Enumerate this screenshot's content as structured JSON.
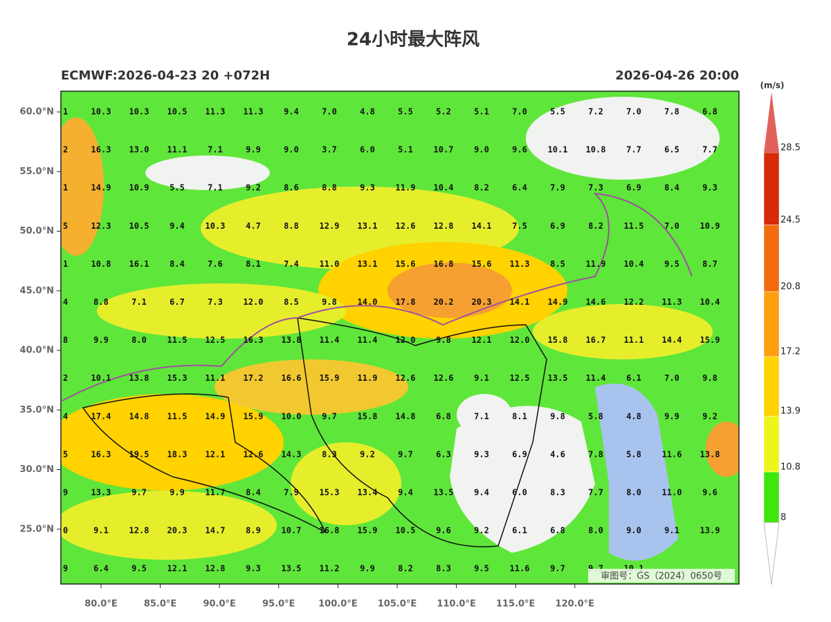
{
  "title": "24小时最大阵风",
  "left_label": "ECMWF:2026-04-23 20 +072H",
  "right_label": "2026-04-26 20:00",
  "unit": "(m/s)",
  "review_number": "审图号：GS（2024）0650号",
  "lat_ticks": [
    {
      "value": 60,
      "label": "60.0°N"
    },
    {
      "value": 55,
      "label": "55.0°N"
    },
    {
      "value": 50,
      "label": "50.0°N"
    },
    {
      "value": 45,
      "label": "45.0°N"
    },
    {
      "value": 40,
      "label": "40.0°N"
    },
    {
      "value": 35,
      "label": "35.0°N"
    },
    {
      "value": 30,
      "label": "30.0°N"
    },
    {
      "value": 25,
      "label": "25.0°N"
    }
  ],
  "lon_ticks": [
    {
      "value": 80,
      "label": "80.0°E"
    },
    {
      "value": 85,
      "label": "85.0°E"
    },
    {
      "value": 90,
      "label": "90.0°E"
    },
    {
      "value": 95,
      "label": "95.0°E"
    },
    {
      "value": 100,
      "label": "100.0°E"
    },
    {
      "value": 105,
      "label": "105.0°E"
    },
    {
      "value": 110,
      "label": "110.0°E"
    },
    {
      "value": 115,
      "label": "115.0°E"
    },
    {
      "value": 120,
      "label": "120.0°E"
    }
  ],
  "colorbar": {
    "levels": [
      8,
      10.8,
      13.9,
      17.2,
      20.8,
      24.5,
      28.5
    ],
    "colors": [
      "#3ee60d",
      "#eef51c",
      "#ffd200",
      "#ff9e10",
      "#f06c0c",
      "#d62a08"
    ],
    "over_color": "#e0625a"
  },
  "grid": {
    "rows": [
      [
        ".1",
        "10.3",
        "10.3",
        "10.5",
        "11.3",
        "11.3",
        "9.4",
        "7.0",
        "4.8",
        "5.5",
        "5.2",
        "5.1",
        "7.0",
        "5.5",
        "7.2",
        "7.0",
        "7.8",
        "6.8"
      ],
      [
        ".2",
        "16.3",
        "13.0",
        "11.1",
        "7.1",
        "9.9",
        "9.0",
        "3.7",
        "6.0",
        "5.1",
        "10.7",
        "9.0",
        "9.6",
        "10.1",
        "10.8",
        "7.7",
        "6.5",
        "7.7"
      ],
      [
        ".1",
        "14.9",
        "10.9",
        "5.5",
        "7.1",
        "9.2",
        "8.6",
        "8.8",
        "9.3",
        "11.9",
        "10.4",
        "8.2",
        "6.4",
        "7.9",
        "7.3",
        "6.9",
        "8.4",
        "9.3"
      ],
      [
        ".5",
        "12.3",
        "10.5",
        "9.4",
        "10.3",
        "4.7",
        "8.8",
        "12.9",
        "13.1",
        "12.6",
        "12.8",
        "14.1",
        "7.5",
        "6.9",
        "8.2",
        "11.5",
        "7.0",
        "10.9"
      ],
      [
        ".1",
        "10.8",
        "16.1",
        "8.4",
        "7.6",
        "8.1",
        "7.4",
        "11.0",
        "13.1",
        "15.6",
        "16.8",
        "15.6",
        "11.3",
        "8.5",
        "11.9",
        "10.4",
        "9.5",
        "8.7"
      ],
      [
        ".4",
        "8.8",
        "7.1",
        "6.7",
        "7.3",
        "12.0",
        "8.5",
        "9.8",
        "14.0",
        "17.8",
        "20.2",
        "20.3",
        "14.1",
        "14.9",
        "14.6",
        "12.2",
        "11.3",
        "10.4"
      ],
      [
        ".8",
        "9.9",
        "8.0",
        "11.5",
        "12.5",
        "16.3",
        "13.8",
        "11.4",
        "11.4",
        "12.0",
        "9.8",
        "12.1",
        "12.0",
        "15.8",
        "16.7",
        "11.1",
        "14.4",
        "15.9"
      ],
      [
        ".2",
        "10.1",
        "13.8",
        "15.3",
        "11.1",
        "17.2",
        "16.6",
        "15.9",
        "11.9",
        "12.6",
        "12.6",
        "9.1",
        "12.5",
        "13.5",
        "11.4",
        "6.1",
        "7.0",
        "9.8"
      ],
      [
        ".4",
        "17.4",
        "14.8",
        "11.5",
        "14.9",
        "15.9",
        "10.0",
        "9.7",
        "15.8",
        "14.8",
        "6.8",
        "7.1",
        "8.1",
        "9.8",
        "5.8",
        "4.8",
        "9.9",
        "9.2"
      ],
      [
        ".5",
        "16.3",
        "19.5",
        "18.3",
        "12.1",
        "12.6",
        "14.3",
        "8.3",
        "9.2",
        "9.7",
        "6.3",
        "9.3",
        "6.9",
        "4.6",
        "7.8",
        "5.8",
        "11.6",
        "13.8"
      ],
      [
        ".9",
        "13.3",
        "9.7",
        "9.9",
        "11.7",
        "8.4",
        "7.9",
        "15.3",
        "13.4",
        "9.4",
        "13.5",
        "9.4",
        "6.0",
        "8.3",
        "7.7",
        "8.0",
        "11.0",
        "9.6"
      ],
      [
        ".0",
        "9.1",
        "12.8",
        "20.3",
        "14.7",
        "8.9",
        "10.7",
        "16.8",
        "15.9",
        "10.5",
        "9.6",
        "9.2",
        "6.1",
        "6.8",
        "8.0",
        "9.0",
        "9.1",
        "13.9"
      ],
      [
        ".9",
        "6.4",
        "9.5",
        "12.1",
        "12.8",
        "9.3",
        "13.5",
        "11.2",
        "9.9",
        "8.2",
        "8.3",
        "9.5",
        "11.6",
        "9.7",
        "9.7",
        "10.1"
      ]
    ]
  }
}
